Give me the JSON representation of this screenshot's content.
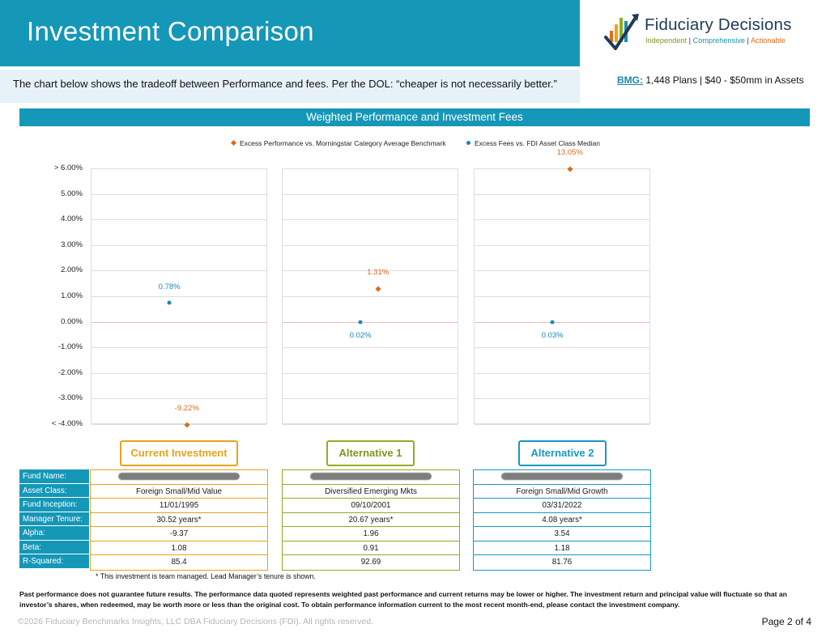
{
  "header": {
    "title": "Investment Comparison",
    "subtitle": "The chart below shows the tradeoff between Performance and fees. Per the DOL: “cheaper is not necessarily better.”"
  },
  "logo": {
    "name": "Fiduciary Decisions",
    "tag1": "Independent",
    "tag2": "Comprehensive",
    "tag3": "Actionable",
    "sep": "|"
  },
  "bmg": {
    "label": "BMG:",
    "text": "1,448 Plans | $40 - $50mm in Assets"
  },
  "chart_band": "Weighted Performance and Investment Fees",
  "chart_data": {
    "type": "scatter",
    "title": "Weighted Performance and Investment Fees",
    "legend": [
      {
        "name": "Excess Performance vs. Morningstar Category Average Benchmark",
        "color": "#d9691f",
        "marker": "diamond"
      },
      {
        "name": "Excess Fees vs. FDI Asset Class Median",
        "color": "#1a86c0",
        "marker": "circle"
      }
    ],
    "legend_position": "top",
    "y_ticks": [
      "> 6.00%",
      "5.00%",
      "4.00%",
      "3.00%",
      "2.00%",
      "1.00%",
      "0.00%",
      "-1.00%",
      "-2.00%",
      "-3.00%",
      "< -4.00%"
    ],
    "ylim": [
      -4,
      6
    ],
    "grid": true,
    "panels": [
      {
        "performance": -9.22,
        "performance_label": "-9.22%",
        "fees": 0.78,
        "fees_label": "0.78%"
      },
      {
        "performance": 1.31,
        "performance_label": "1.31%",
        "fees": 0.02,
        "fees_label": "0.02%"
      },
      {
        "performance": 13.05,
        "performance_label": "13.05%",
        "fees": 0.03,
        "fees_label": "0.03%"
      }
    ]
  },
  "options": [
    {
      "title": "Current Investment",
      "color": "#e8a21d",
      "asset_class": "Foreign Small/Mid Value",
      "inception": "11/01/1995",
      "tenure": "30.52 years*",
      "alpha": "-9.37",
      "beta": "1.08",
      "r_squared": "85.4"
    },
    {
      "title": "Alternative 1",
      "color": "#92ac23",
      "asset_class": "Diversified Emerging Mkts",
      "inception": "09/10/2001",
      "tenure": "20.67 years*",
      "alpha": "1.96",
      "beta": "0.91",
      "r_squared": "92.69"
    },
    {
      "title": "Alternative 2",
      "color": "#1a97c2",
      "asset_class": "Foreign Small/Mid Growth",
      "inception": "03/31/2022",
      "tenure": "4.08 years*",
      "alpha": "3.54",
      "beta": "1.18",
      "r_squared": "81.76"
    }
  ],
  "row_labels": [
    "Fund Name:",
    "Asset Class:",
    "Fund Inception:",
    "Manager Tenure:",
    "Alpha:",
    "Beta:",
    "R-Squared:"
  ],
  "footnote": "* This investment is team managed. Lead Manager’s tenure is shown.",
  "disclaimer": "Past performance does not guarantee future results. The performance data quoted represents weighted past performance and current returns may be lower or higher. The investment return and principal value will fluctuate so that an investor’s shares, when redeemed, may be worth more or less than the original cost. To obtain performance information current to the most recent month-end, please contact the investment company.",
  "copyright": "©2026 Fiduciary Benchmarks Insights, LLC DBA Fiduciary Decisions (FDI). All rights reserved.",
  "page": "Page 2 of 4"
}
